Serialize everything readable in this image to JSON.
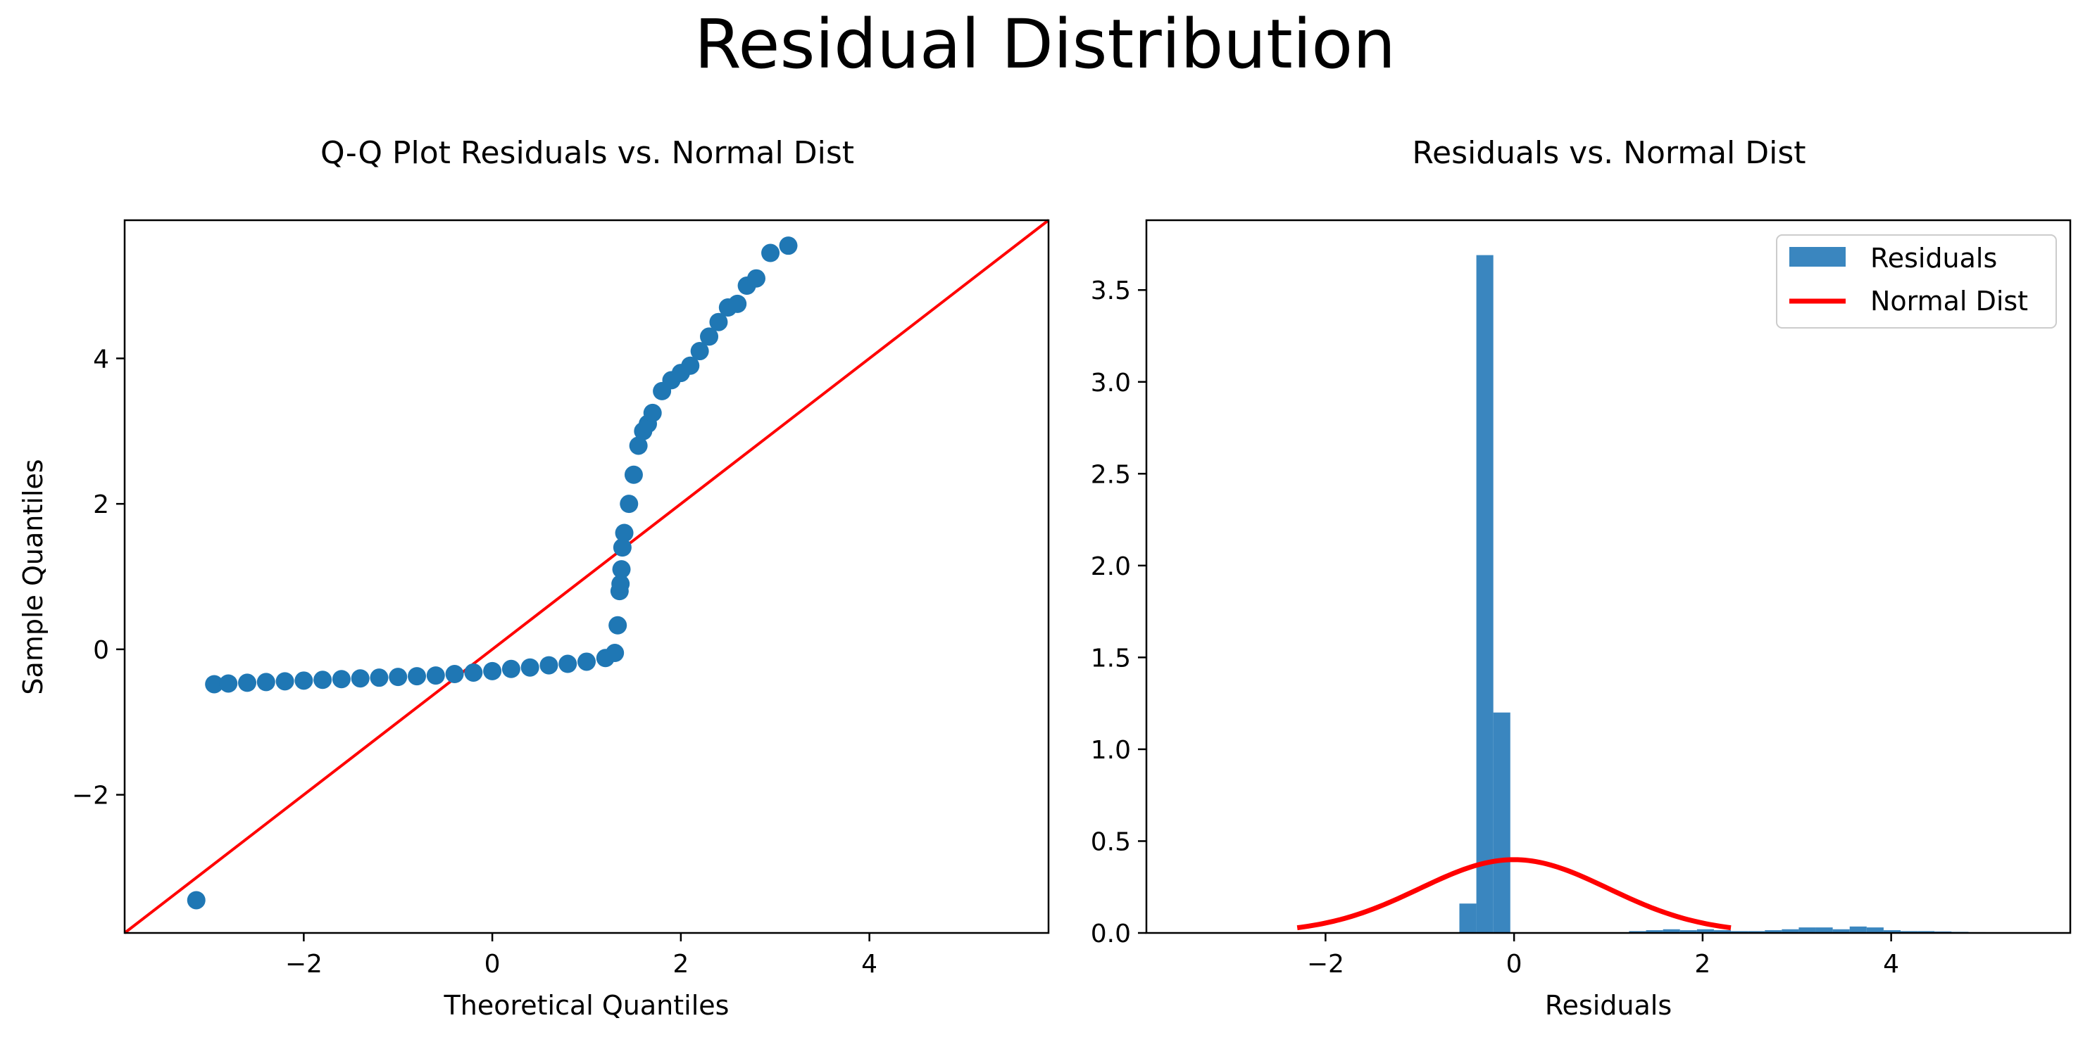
{
  "figure": {
    "suptitle": "Residual Distribution"
  },
  "colors": {
    "points": "#1f77b4",
    "hist": "#3a86bf",
    "line": "#ff0000",
    "curve": "#ff0000"
  },
  "chart_data": [
    {
      "type": "scatter",
      "title": "Q-Q Plot Residuals vs. Normal Dist",
      "xlabel": "Theoretical Quantiles",
      "ylabel": "Sample Quantiles",
      "xlim": [
        -3.9,
        5.9
      ],
      "ylim": [
        -3.9,
        5.9
      ],
      "xticks": [
        -2,
        0,
        2,
        4
      ],
      "yticks": [
        -2,
        0,
        2,
        4
      ],
      "grid": false,
      "reference_line": {
        "x": [
          -3.9,
          5.9
        ],
        "y": [
          -3.9,
          5.9
        ]
      },
      "series": [
        {
          "x": [
            -3.14,
            -2.95,
            -2.8,
            -2.6,
            -2.4,
            -2.2,
            -2.0,
            -1.8,
            -1.6,
            -1.4,
            -1.2,
            -1.0,
            -0.8,
            -0.6,
            -0.4,
            -0.2,
            0.0,
            0.2,
            0.4,
            0.6,
            0.8,
            1.0,
            1.2,
            1.3,
            1.33,
            1.35,
            1.36,
            1.37,
            1.38,
            1.4,
            1.45,
            1.5,
            1.55,
            1.6,
            1.65,
            1.7,
            1.8,
            1.9,
            2.0,
            2.1,
            2.2,
            2.3,
            2.4,
            2.5,
            2.6,
            2.7,
            2.8,
            2.95,
            3.14
          ],
          "y": [
            -3.45,
            -0.48,
            -0.47,
            -0.46,
            -0.45,
            -0.44,
            -0.43,
            -0.42,
            -0.41,
            -0.4,
            -0.39,
            -0.38,
            -0.37,
            -0.36,
            -0.34,
            -0.32,
            -0.3,
            -0.27,
            -0.25,
            -0.22,
            -0.2,
            -0.17,
            -0.12,
            -0.05,
            0.33,
            0.8,
            0.9,
            1.1,
            1.4,
            1.6,
            2.0,
            2.4,
            2.8,
            3.0,
            3.1,
            3.25,
            3.55,
            3.7,
            3.8,
            3.9,
            4.1,
            4.3,
            4.5,
            4.7,
            4.75,
            5.0,
            5.1,
            5.45,
            5.55
          ]
        }
      ]
    },
    {
      "type": "bar",
      "title": "Residuals vs. Normal Dist",
      "xlabel": "Residuals",
      "ylabel": "",
      "xlim": [
        -3.9,
        5.9
      ],
      "ylim": [
        0,
        3.88
      ],
      "xticks": [
        -2,
        0,
        2,
        4
      ],
      "yticks": [
        0.0,
        0.5,
        1.0,
        1.5,
        2.0,
        2.5,
        3.0,
        3.5
      ],
      "grid": false,
      "legend": {
        "placement": "top-right",
        "entries": [
          "Residuals",
          "Normal Dist"
        ]
      },
      "bin_width": 0.18,
      "bin_left_edges": [
        -0.58,
        -0.4,
        -0.22,
        -0.04,
        0.14,
        0.32,
        0.5,
        0.68,
        0.86,
        1.04,
        1.22,
        1.4,
        1.58,
        1.76,
        1.94,
        2.12,
        2.3,
        2.48,
        2.66,
        2.84,
        3.02,
        3.2,
        3.38,
        3.56,
        3.74,
        3.92,
        4.1,
        4.28,
        4.46,
        4.64,
        4.82,
        5.0,
        5.18,
        5.36
      ],
      "series": [
        {
          "name": "Residuals",
          "values": [
            0.16,
            3.69,
            1.2,
            0,
            0,
            0,
            0,
            0,
            0.003,
            0,
            0.01,
            0.015,
            0.02,
            0.015,
            0.02,
            0.015,
            0.01,
            0.01,
            0.015,
            0.02,
            0.03,
            0.03,
            0.02,
            0.035,
            0.03,
            0.015,
            0.01,
            0.01,
            0.008,
            0.006,
            0.004,
            0.003,
            0.003,
            0.002
          ]
        },
        {
          "name": "Normal Dist",
          "type": "line",
          "mean": 0,
          "std": 1,
          "x_range": [
            -2.3,
            2.3
          ]
        }
      ]
    }
  ]
}
